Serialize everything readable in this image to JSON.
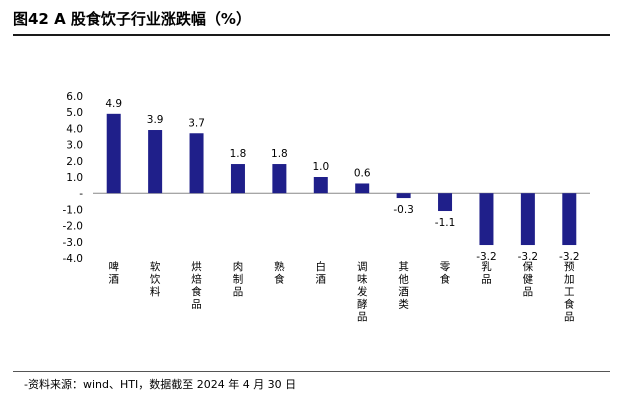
{
  "header": {
    "title": "图42 A 股食饮子行业涨跌幅（%）"
  },
  "footer": {
    "source": "-资料来源：wind、HTI，数据截至 2024 年 4 月 30 日"
  },
  "colors": {
    "bar": "#1f1f8a",
    "axis": "#888888",
    "text": "#000000"
  },
  "chart_data": {
    "type": "bar",
    "title": "",
    "xlabel": "",
    "ylabel": "",
    "ylim": [
      -4.0,
      6.0
    ],
    "yticks": [
      "6.0",
      "5.0",
      "4.0",
      "3.0",
      "2.0",
      "1.0",
      "-",
      "-1.0",
      "-2.0",
      "-3.0",
      "-4.0"
    ],
    "ytick_values": [
      6,
      5,
      4,
      3,
      2,
      1,
      0,
      -1,
      -2,
      -3,
      -4
    ],
    "grid": false,
    "categories": [
      "啤酒",
      "软饮料",
      "烘焙食品",
      "肉制品",
      "熟食",
      "白酒",
      "调味发酵品",
      "其他酒类",
      "零食",
      "乳品",
      "保健品",
      "预加工食品"
    ],
    "values": [
      4.9,
      3.9,
      3.7,
      1.8,
      1.8,
      1.0,
      0.6,
      -0.3,
      -1.1,
      -3.2,
      -3.2,
      -3.2
    ],
    "value_labels": [
      "4.9",
      "3.9",
      "3.7",
      "1.8",
      "1.8",
      "1.0",
      "0.6",
      "-0.3",
      "-1.1",
      "-3.2",
      "-3.2",
      "-3.2"
    ]
  }
}
